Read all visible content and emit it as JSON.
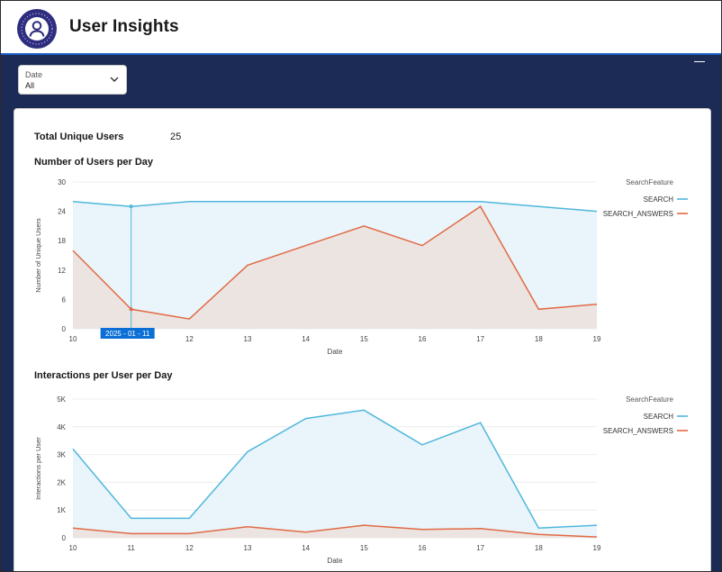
{
  "app": {
    "title": "User Insights",
    "logo_icon": "user-circle-icon"
  },
  "filter": {
    "label": "Date",
    "value": "All",
    "icon": "chevron-down-icon"
  },
  "kpi": {
    "label": "Total Unique Users",
    "value": "25"
  },
  "colors": {
    "search": "#4fb7dc",
    "search_answers": "#e26a45",
    "search_fill": "#e9f5fa",
    "answers_fill": "#ebe4e1",
    "header_accent": "#1b5fc9",
    "navy": "#1b2b55",
    "tooltip": "#0b6fd6"
  },
  "charts": {
    "users_title": "Number of Users per Day",
    "interactions_title": "Interactions per User per Day"
  },
  "chart_data": [
    {
      "type": "area",
      "title": "Number of Users per Day",
      "xlabel": "Date",
      "ylabel": "Number of Unique Users",
      "x": [
        10,
        11,
        12,
        13,
        14,
        15,
        16,
        17,
        18,
        19
      ],
      "x_ticks": [
        "10",
        "12",
        "13",
        "14",
        "15",
        "16",
        "17",
        "18",
        "19"
      ],
      "y_ticks": [
        "0",
        "6",
        "12",
        "18",
        "24",
        "30"
      ],
      "ylim": [
        0,
        30
      ],
      "legend_title": "SearchFeature",
      "legend_position": "top-right",
      "grid": true,
      "series": [
        {
          "name": "SEARCH",
          "values": [
            26,
            25,
            26,
            26,
            26,
            26,
            26,
            26,
            25,
            24
          ]
        },
        {
          "name": "SEARCH_ANSWERS",
          "values": [
            16,
            4,
            2,
            13,
            17,
            21,
            17,
            25,
            4,
            5
          ]
        }
      ],
      "hover": {
        "x": 11,
        "label": "2025 - 01 - 11"
      }
    },
    {
      "type": "area",
      "title": "Interactions per User per Day",
      "xlabel": "Date",
      "ylabel": "Interactions per User",
      "x": [
        10,
        11,
        12,
        13,
        14,
        15,
        16,
        17,
        18,
        19
      ],
      "x_ticks": [
        "10",
        "11",
        "12",
        "13",
        "14",
        "15",
        "16",
        "17",
        "18",
        "19"
      ],
      "y_ticks": [
        "0",
        "1K",
        "2K",
        "3K",
        "4K",
        "5K"
      ],
      "ylim": [
        0,
        5000
      ],
      "legend_title": "SearchFeature",
      "legend_position": "top-right",
      "grid": true,
      "series": [
        {
          "name": "SEARCH",
          "values": [
            3200,
            700,
            700,
            3100,
            4300,
            4600,
            3350,
            4150,
            350,
            450
          ]
        },
        {
          "name": "SEARCH_ANSWERS",
          "values": [
            350,
            150,
            150,
            400,
            200,
            450,
            300,
            330,
            120,
            30
          ]
        }
      ]
    }
  ]
}
